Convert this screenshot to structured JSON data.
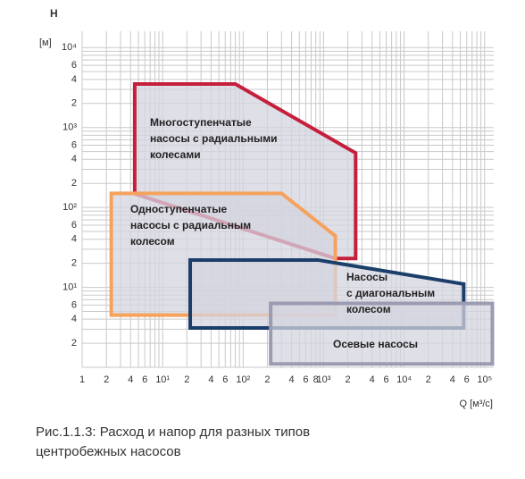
{
  "chart_data": {
    "type": "region",
    "y_label": "H",
    "y_unit": "[м]",
    "x_label": "Q [м³/с]",
    "caption": [
      "Рис.1.1.3: Расход и напор для разных типов",
      "центробежных насосов"
    ],
    "log_x": true,
    "log_y": true,
    "grid": true,
    "xlim": [
      1,
      130000
    ],
    "ylim": [
      1,
      16000
    ],
    "xticks": [
      1,
      2,
      4,
      6,
      {
        "value": 10,
        "label": "10¹"
      },
      {
        "value": 20,
        "label": "2"
      },
      {
        "value": 40,
        "label": "4"
      },
      {
        "value": 60,
        "label": "6"
      },
      {
        "value": 100,
        "label": "10²"
      },
      {
        "value": 200,
        "label": "2"
      },
      {
        "value": 400,
        "label": "4"
      },
      {
        "value": 600,
        "label": "6"
      },
      {
        "value": 800,
        "label": "8"
      },
      {
        "value": 1000,
        "label": "10³"
      },
      {
        "value": 2000,
        "label": "2"
      },
      {
        "value": 4000,
        "label": "4"
      },
      {
        "value": 6000,
        "label": "6"
      },
      {
        "value": 10000,
        "label": "10⁴"
      },
      {
        "value": 20000,
        "label": "2"
      },
      {
        "value": 40000,
        "label": "4"
      },
      {
        "value": 60000,
        "label": "6"
      },
      {
        "value": 100000,
        "label": "10⁵"
      }
    ],
    "xminorticks": [
      3,
      5,
      7,
      8,
      9,
      30,
      50,
      70,
      80,
      90,
      300,
      500,
      700,
      900,
      3000,
      5000,
      7000,
      8000,
      9000,
      30000,
      50000,
      70000,
      80000,
      90000
    ],
    "yticks": [
      {
        "value": 10000,
        "label": "10⁴"
      },
      {
        "value": 6000,
        "label": "6"
      },
      {
        "value": 4000,
        "label": "4"
      },
      {
        "value": 2000,
        "label": "2"
      },
      {
        "value": 1000,
        "label": "10³"
      },
      {
        "value": 600,
        "label": "6"
      },
      {
        "value": 400,
        "label": "4"
      },
      {
        "value": 200,
        "label": "2"
      },
      {
        "value": 100,
        "label": "10²"
      },
      {
        "value": 60,
        "label": "6"
      },
      {
        "value": 40,
        "label": "4"
      },
      {
        "value": 20,
        "label": "2"
      },
      {
        "value": 10,
        "label": "10¹"
      },
      6,
      4,
      2
    ],
    "yminorticks": [
      1,
      3,
      5,
      7,
      8,
      9,
      30,
      50,
      70,
      80,
      90,
      300,
      500,
      700,
      800,
      900,
      3000,
      5000,
      7000,
      8000,
      9000
    ],
    "fill": "#d4d4df",
    "series": [
      {
        "name": [
          "Многоступенчатые",
          "насосы с радиальными",
          "колесами"
        ],
        "color": "#c61f3c",
        "x": [
          4.5,
          4.5,
          80,
          2500,
          2500,
          1400
        ],
        "y": [
          148,
          3500,
          3500,
          480,
          23,
          23
        ]
      },
      {
        "name": [
          "Одноступенчатые",
          "насосы с радиальным",
          "колесом"
        ],
        "color": "#f5a25c",
        "x": [
          2.3,
          300,
          1400,
          1400,
          2.3
        ],
        "y": [
          150,
          150,
          44,
          4.5,
          4.5
        ]
      },
      {
        "name": [
          "Насосы",
          "с диагональным",
          "колесом"
        ],
        "color": "#1b3e6a",
        "x": [
          22,
          850,
          55000,
          55000,
          22
        ],
        "y": [
          22,
          22,
          11,
          3.1,
          3.1
        ]
      },
      {
        "name": [
          "Осевые насосы"
        ],
        "color": "#9b9bb2",
        "x": [
          220,
          125000,
          125000,
          220
        ],
        "y": [
          6.3,
          6.3,
          1.1,
          1.1
        ]
      }
    ]
  }
}
